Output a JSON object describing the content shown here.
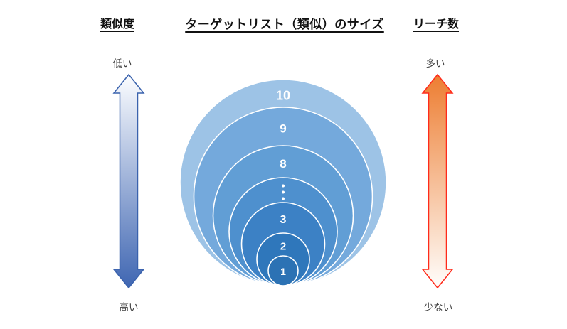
{
  "title": "ターゲットリスト（類似）のサイズ",
  "left_axis": {
    "title": "類似度",
    "top_label": "低い",
    "bottom_label": "高い",
    "gradient_top": "#FCFDFF",
    "gradient_bottom": "#3F66B2",
    "border_color": "#3A62AD",
    "direction": "low-at-top-high-at-bottom"
  },
  "right_axis": {
    "title": "リーチ数",
    "top_label": "多い",
    "bottom_label": "少ない",
    "gradient_top": "#ED7D31",
    "gradient_bottom": "#FFFEFC",
    "border_color": "#FF2A1A",
    "direction": "many-at-top-few-at-bottom"
  },
  "chart_data": {
    "type": "nested-circles",
    "title": "ターゲットリスト（類似）のサイズ",
    "description_axes": {
      "left": "類似度: 低い(上) → 高い(下)",
      "right": "リーチ数: 多い(上) → 少ない(下)"
    },
    "ring_stroke_color": "#FFFFFF",
    "rings": [
      {
        "label": "10",
        "radius": 145,
        "color": "#9DC3E6",
        "font_size": 18
      },
      {
        "label": "9",
        "radius": 125.5,
        "color": "#74A9DC",
        "font_size": 17
      },
      {
        "label": "8",
        "radius": 98.5,
        "color": "#619ED5",
        "font_size": 17
      },
      {
        "label": "⋮",
        "radius": 76,
        "color": "#4E90CE",
        "font_size": 15
      },
      {
        "label": "3",
        "radius": 58.5,
        "color": "#3C81C5",
        "font_size": 16
      },
      {
        "label": "2",
        "radius": 37,
        "color": "#2F77BB",
        "font_size": 15
      },
      {
        "label": "1",
        "radius": 21,
        "color": "#2C72B4",
        "font_size": 14
      }
    ]
  }
}
